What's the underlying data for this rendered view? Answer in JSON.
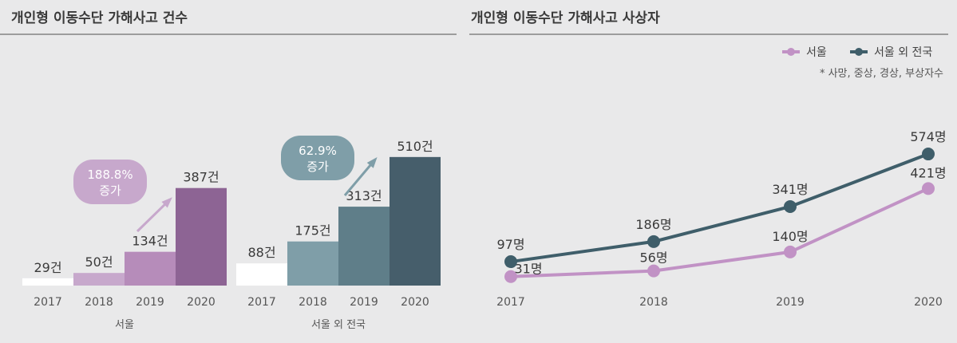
{
  "left_title": "개인형 이동수단 가해사고 건수",
  "right_title": "개인형 이동수단 가해사고 사상자",
  "chart_data": [
    {
      "type": "bar",
      "title": "개인형 이동수단 가해사고 건수",
      "groups": [
        {
          "name": "서울",
          "categories": [
            "2017",
            "2018",
            "2019",
            "2020"
          ],
          "values": [
            29,
            50,
            134,
            387
          ],
          "labels": [
            "29건",
            "50건",
            "134건",
            "387건"
          ],
          "colors": [
            "#ffffff",
            "#c7a8cc",
            "#b68cba",
            "#8d6494"
          ],
          "annotation": {
            "line1": "188.8%",
            "line2": "증가",
            "color": "#c7a8cc"
          }
        },
        {
          "name": "서울 외 전국",
          "categories": [
            "2017",
            "2018",
            "2019",
            "2020"
          ],
          "values": [
            88,
            175,
            313,
            510
          ],
          "labels": [
            "88건",
            "175건",
            "313건",
            "510건"
          ],
          "colors": [
            "#ffffff",
            "#7f9ea8",
            "#5f7e89",
            "#465e6b"
          ],
          "annotation": {
            "line1": "62.9%",
            "line2": "증가",
            "color": "#7f9ea8"
          }
        }
      ]
    },
    {
      "type": "line",
      "title": "개인형 이동수단 가해사고 사상자",
      "note": "* 사망, 중상, 경상, 부상자수",
      "x": [
        "2017",
        "2018",
        "2019",
        "2020"
      ],
      "legend_position": "top-right",
      "series": [
        {
          "name": "서울",
          "values": [
            31,
            56,
            140,
            421
          ],
          "labels": [
            "31명",
            "56명",
            "140명",
            "421명"
          ],
          "color": "#c192c5"
        },
        {
          "name": "서울 외 전국",
          "values": [
            97,
            186,
            341,
            574
          ],
          "labels": [
            "97명",
            "186명",
            "341명",
            "574명"
          ],
          "color": "#3f5e6a"
        }
      ]
    }
  ]
}
